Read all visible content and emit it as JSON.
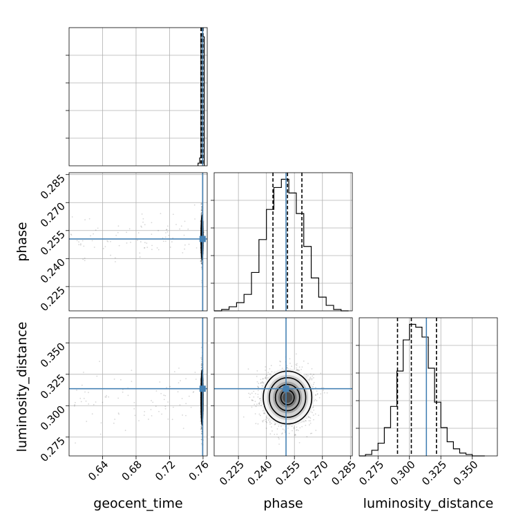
{
  "chart_data": {
    "type": "corner",
    "parameters": [
      "geocent_time",
      "phase",
      "luminosity_distance"
    ],
    "axis_labels": {
      "geocent_time": "geocent_time",
      "phase": "phase",
      "luminosity_distance": "luminosity_distance"
    },
    "ranges": {
      "geocent_time": [
        0.6,
        0.765
      ],
      "phase": [
        0.212,
        0.286
      ],
      "luminosity_distance": [
        0.26,
        0.37
      ]
    },
    "ticks": {
      "geocent_time": [
        0.64,
        0.68,
        0.72,
        0.76
      ],
      "phase": [
        0.225,
        0.24,
        0.255,
        0.27,
        0.285
      ],
      "luminosity_distance": [
        0.275,
        0.3,
        0.325,
        0.35
      ]
    },
    "tick_labels": {
      "geocent_time": [
        "0.64",
        "0.68",
        "0.72",
        "0.76"
      ],
      "phase": [
        "0.225",
        "0.240",
        "0.255",
        "0.270",
        "0.285"
      ],
      "luminosity_distance": [
        "0.275",
        "0.300",
        "0.325",
        "0.350"
      ]
    },
    "truths": {
      "geocent_time": 0.7595,
      "phase": 0.2505,
      "luminosity_distance": 0.3135
    },
    "quantiles": {
      "geocent_time": [
        0.7575,
        0.7588,
        0.76
      ],
      "phase": [
        0.2435,
        0.2513,
        0.259
      ],
      "luminosity_distance": [
        0.2905,
        0.3015,
        0.3215
      ]
    },
    "posterior_center": {
      "phase": 0.2513,
      "luminosity_distance": 0.3065
    },
    "histograms": {
      "geocent_time": {
        "bin_edges": [
          0.754,
          0.756,
          0.7575,
          0.76,
          0.7615
        ],
        "counts": [
          2,
          6,
          100,
          98
        ]
      },
      "phase": {
        "bin_edges": [
          0.212,
          0.216,
          0.22,
          0.224,
          0.228,
          0.232,
          0.236,
          0.24,
          0.244,
          0.248,
          0.252,
          0.256,
          0.26,
          0.264,
          0.268,
          0.272,
          0.276,
          0.28,
          0.284
        ],
        "counts": [
          0,
          1,
          3,
          6,
          12,
          28,
          52,
          74,
          90,
          96,
          86,
          71,
          47,
          24,
          10,
          4,
          1,
          0
        ]
      },
      "luminosity_distance": {
        "bin_edges": [
          0.26,
          0.265,
          0.27,
          0.275,
          0.28,
          0.285,
          0.29,
          0.295,
          0.3,
          0.305,
          0.31,
          0.315,
          0.32,
          0.325,
          0.33,
          0.335,
          0.34,
          0.345,
          0.35,
          0.355,
          0.36
        ],
        "counts": [
          0,
          1,
          4,
          9,
          20,
          35,
          60,
          82,
          93,
          91,
          84,
          62,
          38,
          20,
          10,
          5,
          2,
          1,
          0,
          0
        ]
      }
    },
    "colors": {
      "truth": "#4682b4",
      "histogram": "#000000",
      "grid": "#b0b0b0",
      "density_levels": [
        "#f2f2f2",
        "#d0d0d0",
        "#a6a6a6",
        "#7a7a7a",
        "#4d4d4d"
      ],
      "scatter": "#000000"
    },
    "grid": true
  }
}
